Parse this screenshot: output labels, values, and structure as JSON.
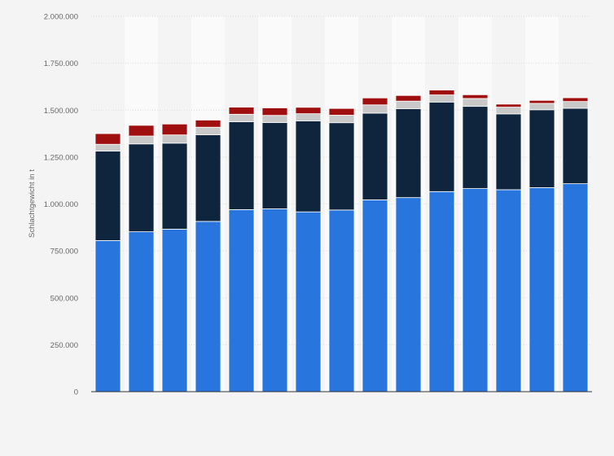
{
  "chart_data": {
    "type": "bar",
    "stacked": true,
    "title": "",
    "xlabel": "",
    "ylabel": "Schlachtgewicht in t",
    "ylim": [
      0,
      2000000
    ],
    "yticks": [
      0,
      250000,
      500000,
      750000,
      1000000,
      1250000,
      1500000,
      1750000,
      2000000
    ],
    "ytick_labels": [
      "0",
      "250.000",
      "500.000",
      "750.000",
      "1.000.000",
      "1.250.000",
      "1.500.000",
      "1.750.000",
      "2.000.000"
    ],
    "categories": [
      "",
      "",
      "",
      "",
      "",
      "",
      "",
      "",
      "",
      "",
      "",
      "",
      "",
      "",
      ""
    ],
    "grid": true,
    "legend": "none",
    "series": [
      {
        "color": "#2876dd",
        "values": [
          805000,
          852000,
          866000,
          907000,
          970000,
          974000,
          958000,
          968000,
          1022000,
          1034000,
          1066000,
          1082000,
          1076000,
          1087000,
          1108000
        ]
      },
      {
        "color": "#0f253e",
        "values": [
          477000,
          468000,
          458000,
          462000,
          468000,
          460000,
          485000,
          465000,
          462000,
          474000,
          477000,
          438000,
          404000,
          415000,
          402000
        ]
      },
      {
        "color": "#c8c8c8",
        "values": [
          36000,
          42000,
          44000,
          40000,
          40000,
          38000,
          38000,
          40000,
          44000,
          40000,
          38000,
          42000,
          36000,
          34000,
          36000
        ]
      },
      {
        "color": "#a00f0f",
        "values": [
          57000,
          57000,
          58000,
          38000,
          38000,
          40000,
          34000,
          36000,
          37000,
          30000,
          26000,
          20000,
          16000,
          16000,
          20000
        ]
      }
    ]
  }
}
